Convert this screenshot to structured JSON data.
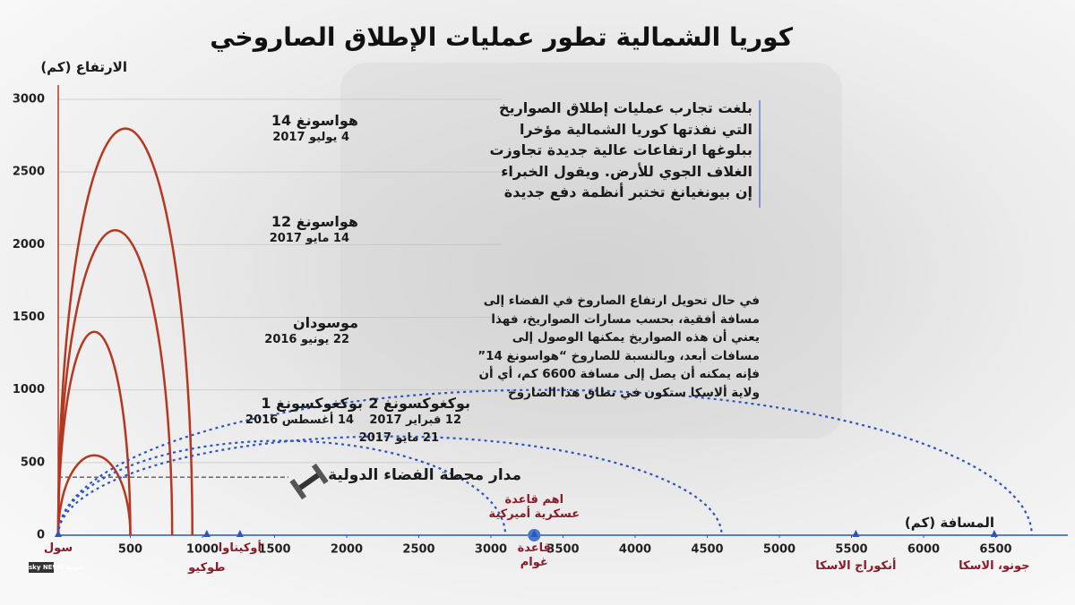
{
  "title": "كوريا الشمالية تطور عمليات الإطلاق الصاروخي",
  "logo": "sky NEWS عربية",
  "paragraphs": [
    [
      "بلغت تجارب عمليات إطلاق الصواريخ",
      "التي نفذتها كوريا الشمالية مؤخرا",
      "ببلوغها ارتفاعات عالية جديدة تجاوزت",
      "الغلاف الجوي للأرض. ويقول الخبراء",
      "إن بيونغيانغ تختبر أنظمة دفع جديدة"
    ],
    [
      "في حال تحويل ارتفاع الصاروخ في الفضاء إلى",
      "مسافة أفقية، بحسب مسارات الصواريخ، فهذا",
      "يعني أن هذه الصواريخ يمكنها الوصول إلى",
      "مسافات أبعد، وبالنسبة للصاروخ “هواسونغ 14”",
      "فإنه يمكنه أن يصل إلى مسافة 6600 كم، أي أن",
      "ولاية ألاسكا ستكون في نطاق هذا الصاروخ"
    ]
  ],
  "chart_data": {
    "type": "trajectory",
    "ylabel": "الارتفاع (كم)",
    "xlabel": "المسافة (كم)",
    "xlim": [
      0,
      7000
    ],
    "ylim": [
      0,
      3000
    ],
    "yticks": [
      0,
      500,
      1000,
      1500,
      2000,
      2500,
      3000
    ],
    "xticks": [
      500,
      1000,
      1500,
      2000,
      2500,
      3000,
      3500,
      4000,
      4500,
      5000,
      5500,
      6000,
      6500
    ],
    "grid": true,
    "trajectories": [
      {
        "apogee": 2800,
        "range": 930,
        "color": "#b5371f",
        "style": "solid"
      },
      {
        "apogee": 2100,
        "range": 790,
        "color": "#b5371f",
        "style": "solid"
      },
      {
        "apogee": 1400,
        "range": 500,
        "color": "#b5371f",
        "style": "solid"
      },
      {
        "apogee": 550,
        "range": 500,
        "color": "#b5371f",
        "style": "solid"
      },
      {
        "apogee": 1000,
        "range": 6750,
        "color": "#2a55c0",
        "style": "dotted"
      },
      {
        "apogee": 680,
        "range": 4600,
        "color": "#2a55c0",
        "style": "dotted"
      },
      {
        "apogee": 650,
        "range": 3100,
        "color": "#2a55c0",
        "style": "dotted"
      }
    ],
    "iss": {
      "label": "مدار محطة الفضاء الدولية",
      "altitude": 400
    },
    "missiles": [
      {
        "name": "هواسونغ 14",
        "dates": [
          "4 يوليو 2017"
        ]
      },
      {
        "name": "هواسونغ 12",
        "dates": [
          "14 مايو 2017"
        ]
      },
      {
        "name": "موسودان",
        "dates": [
          "22 يونيو 2016"
        ]
      },
      {
        "name": "بوكغوكسونغ 1",
        "dates": [
          "14 أغسطس 2016"
        ]
      },
      {
        "name": "بوكغوكسونغ 2",
        "dates": [
          "12 فبراير 2017",
          "21 مايو 2017"
        ]
      }
    ],
    "places": [
      {
        "name": [
          "سول"
        ],
        "distance": 0
      },
      {
        "name": [
          "طوكيو"
        ],
        "distance": 1030
      },
      {
        "name": [
          "أوكيناوا"
        ],
        "distance": 1260
      },
      {
        "name": [
          "قاعدة",
          "غوام"
        ],
        "distance": 3300,
        "note": [
          "اهم قاعدة",
          "عسكرية أميركية"
        ]
      },
      {
        "name": [
          "أنكوراج الاسكا"
        ],
        "distance": 5530
      },
      {
        "name": [
          "جونو، الاسكا"
        ],
        "distance": 6490
      }
    ]
  }
}
